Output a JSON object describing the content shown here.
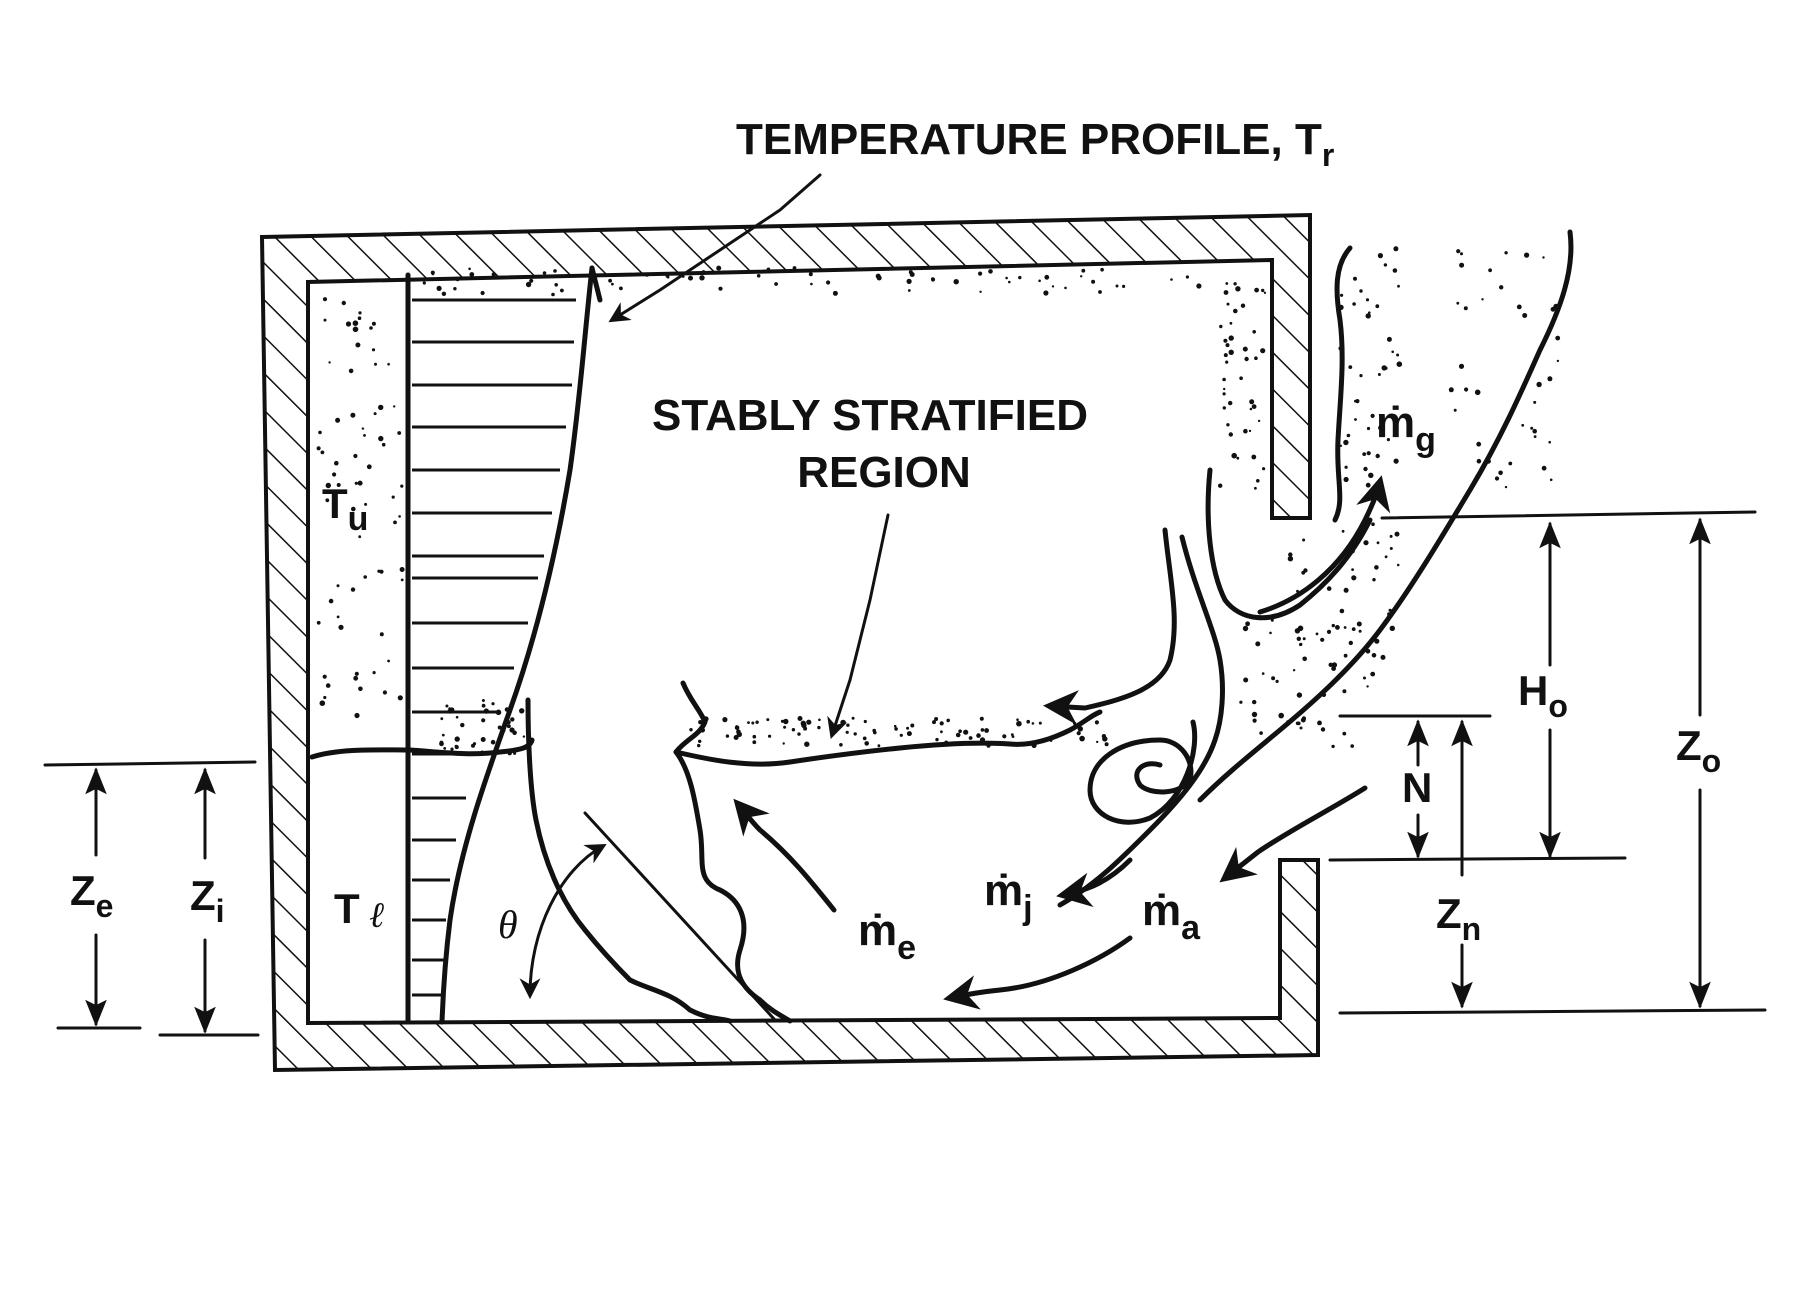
{
  "labels": {
    "temperature_profile": "TEMPERATURE PROFILE, T",
    "temperature_profile_sub": "r",
    "stably_stratified_1": "STABLY STRATIFIED",
    "stably_stratified_2": "REGION",
    "t_upper": "T",
    "t_upper_sub": "u",
    "t_lower": "T",
    "t_lower_sub": "ℓ",
    "theta": "θ",
    "m_dot": "ṁ",
    "m_g_sub": "g",
    "m_e_sub": "e",
    "m_j_sub": "j",
    "m_a_sub": "a",
    "h_o": "H",
    "h_o_sub": "o",
    "z_o": "Z",
    "z_o_sub": "o",
    "n": "N",
    "z_n": "Z",
    "z_n_sub": "n",
    "z_e": "Z",
    "z_e_sub": "e",
    "z_i": "Z",
    "z_i_sub": "i"
  },
  "colors": {
    "ink": "#111111",
    "paper": "#ffffff"
  }
}
